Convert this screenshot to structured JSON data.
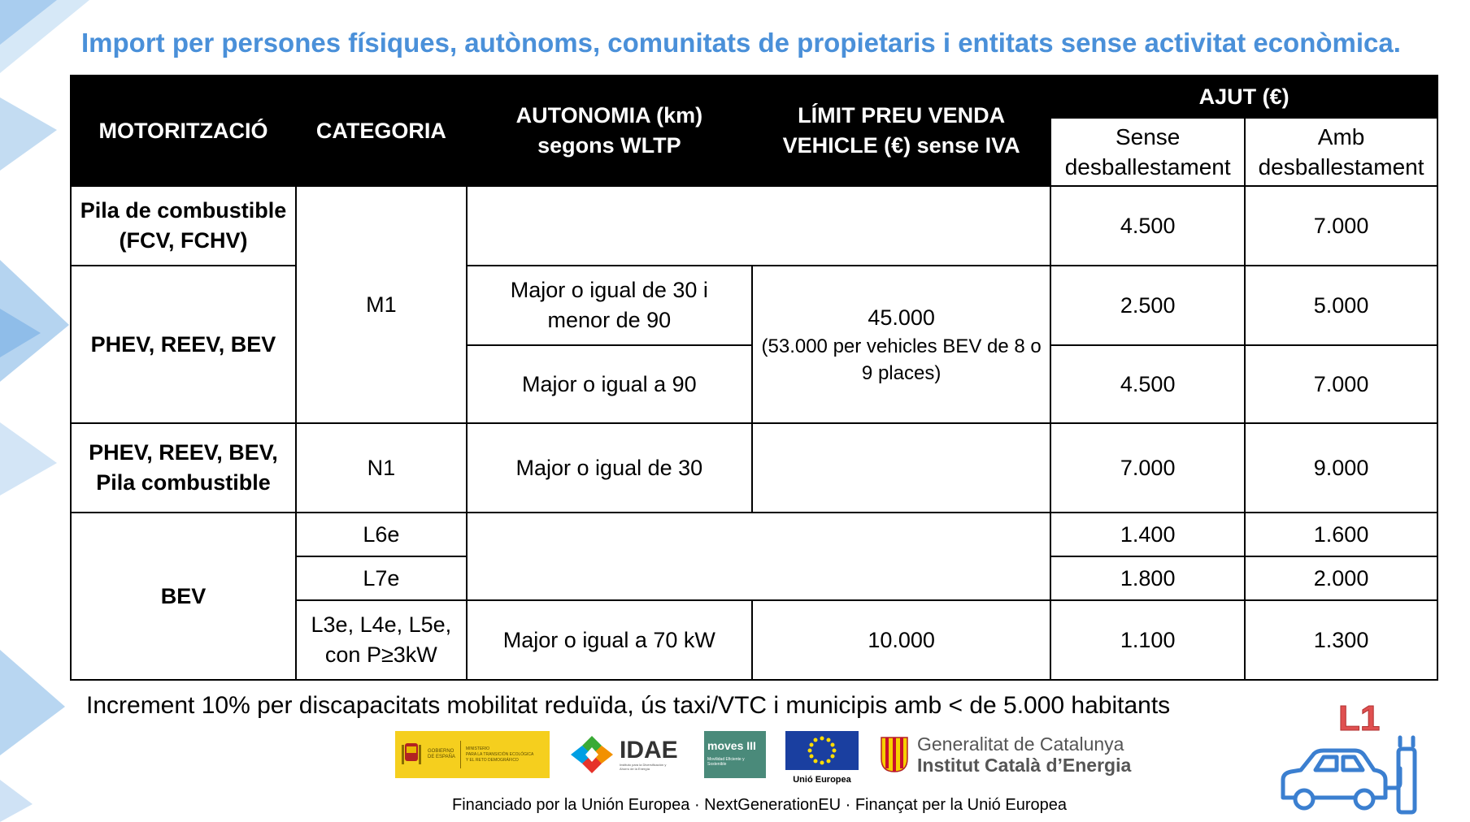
{
  "title": "Import per persones físiques, autònoms, comunitats de propietaris i entitats sense activitat econòmica.",
  "table": {
    "headers": {
      "motoritzacio": "MOTORITZACIÓ",
      "categoria": "CATEGORIA",
      "autonomia_line1": "AUTONOMIA (km)",
      "autonomia_line2": "segons WLTP",
      "limit_line1": "LÍMIT PREU VENDA",
      "limit_line2": "VEHICLE (€) sense IVA",
      "ajut": "AJUT (€)",
      "sense_line1": "Sense",
      "sense_line2": "desballestament",
      "amb_line1": "Amb",
      "amb_line2": "desballestament"
    },
    "rows": {
      "fcv_motor_line1": "Pila de combustible",
      "fcv_motor_line2": "(FCV, FCHV)",
      "fcv_sense": "4.500",
      "fcv_amb": "7.000",
      "m1_category": "M1",
      "phev_motor": "PHEV, REEV, BEV",
      "phev1_autonomia_line1": "Major o igual de 30 i",
      "phev1_autonomia_line2": "menor de 90",
      "phev1_sense": "2.500",
      "phev1_amb": "5.000",
      "m1_limit": "45.000",
      "m1_limit_note_line1": "(53.000 per vehicles BEV de 8 o",
      "m1_limit_note_line2": "9 places)",
      "phev2_autonomia": "Major o igual a 90",
      "phev2_sense": "4.500",
      "phev2_amb": "7.000",
      "n1_motor_line1": "PHEV, REEV, BEV,",
      "n1_motor_line2": "Pila combustible",
      "n1_category": "N1",
      "n1_autonomia": "Major o igual de 30",
      "n1_sense": "7.000",
      "n1_amb": "9.000",
      "bev_motor": "BEV",
      "l6e_category": "L6e",
      "l6e_sense": "1.400",
      "l6e_amb": "1.600",
      "l7e_category": "L7e",
      "l7e_sense": "1.800",
      "l7e_amb": "2.000",
      "l3e_category_line1": "L3e, L4e, L5e,",
      "l3e_category_line2": "con P≥3kW",
      "l3e_autonomia": "Major o igual a 70 kW",
      "l3e_limit": "10.000",
      "l3e_sense": "1.100",
      "l3e_amb": "1.300"
    }
  },
  "note": "Increment 10% per discapacitats mobilitat reduïda, ús taxi/VTC i municipis amb < de 5.000 habitants",
  "logos": {
    "gobierno_line1": "GOBIERNO",
    "gobierno_line2": "DE ESPAÑA",
    "ministerio_line1": "MINISTERIO",
    "ministerio_line2": "PARA LA TRANSICIÓN ECOLÓGICA",
    "ministerio_line3": "Y EL RETO DEMOGRÁFICO",
    "idae": "IDAE",
    "idae_sub": "Instituto para la Diversificación y Ahorro de la Energía",
    "moves": "moves III",
    "moves_sub": "Movilidad Eficiente y Sostenible",
    "eu": "Unió Europea",
    "gencat_line1": "Generalitat de Catalunya",
    "gencat_line2": "Institut Català d’Energia"
  },
  "funding": "Financiado por la Unión  Europea · NextGenerationEU · Finançat per la Unió Europea",
  "badge": "L1",
  "colors": {
    "title": "#4a90d9",
    "header_bg": "#000000",
    "badge_red": "#e05050",
    "badge_blue": "#3b7fd0"
  }
}
